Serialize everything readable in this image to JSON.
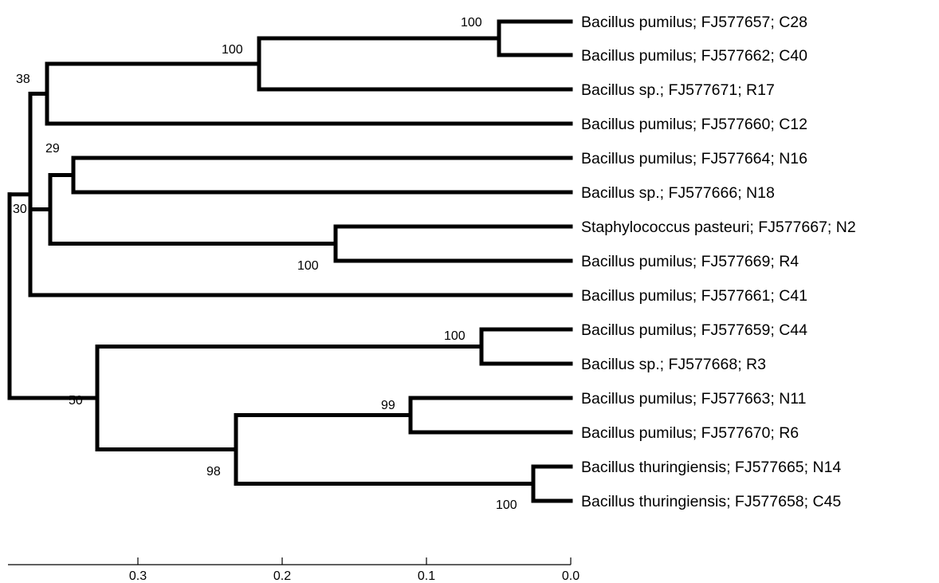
{
  "tree": {
    "id": "root",
    "children": [
      {
        "id": "upper",
        "support": "30",
        "children": [
          {
            "id": "g38",
            "support": "38",
            "children": [
              {
                "id": "g100a",
                "support": "100",
                "children": [
                  {
                    "id": "g100b",
                    "support": "100",
                    "children": [
                      {
                        "label": "Bacillus pumilus; FJ577657; C28"
                      },
                      {
                        "label": "Bacillus pumilus; FJ577662; C40"
                      }
                    ]
                  },
                  {
                    "label": "Bacillus sp.; FJ577671; R17"
                  }
                ]
              },
              {
                "label": "Bacillus pumilus; FJ577660; C12"
              }
            ]
          },
          {
            "id": "gmid",
            "children": [
              {
                "id": "g29",
                "support": "29",
                "children": [
                  {
                    "label": "Bacillus pumilus; FJ577664; N16"
                  },
                  {
                    "label": "Bacillus sp.; FJ577666; N18"
                  }
                ]
              },
              {
                "id": "gstaph",
                "support": "100",
                "children": [
                  {
                    "label": "Staphylococcus pasteuri; FJ577667; N2"
                  },
                  {
                    "label": "Bacillus pumilus; FJ577669; R4"
                  }
                ]
              }
            ]
          },
          {
            "label": "Bacillus pumilus; FJ577661; C41"
          }
        ]
      },
      {
        "id": "lower",
        "support": "50",
        "children": [
          {
            "id": "gc44",
            "support": "100",
            "children": [
              {
                "label": "Bacillus pumilus; FJ577659; C44"
              },
              {
                "label": "Bacillus sp.; FJ577668; R3"
              }
            ]
          },
          {
            "id": "g98",
            "support": "98",
            "children": [
              {
                "id": "g99",
                "support": "99",
                "children": [
                  {
                    "label": "Bacillus pumilus; FJ577663; N11"
                  },
                  {
                    "label": "Bacillus pumilus; FJ577670; R6"
                  }
                ]
              },
              {
                "id": "gthur",
                "support": "100",
                "children": [
                  {
                    "label": "Bacillus thuringiensis; FJ577665; N14"
                  },
                  {
                    "label": "Bacillus thuringiensis; FJ577658; C45"
                  }
                ]
              }
            ]
          }
        ]
      }
    ]
  },
  "scale_bar": {
    "ticks": [
      "0.3",
      "0.2",
      "0.1",
      "0.0"
    ]
  }
}
